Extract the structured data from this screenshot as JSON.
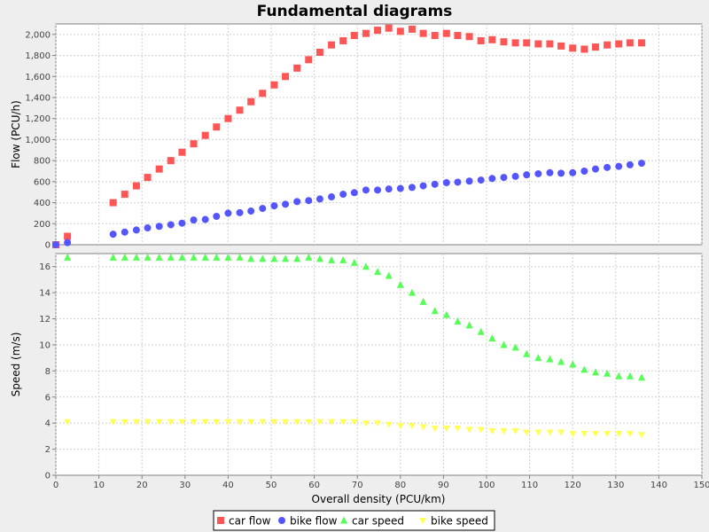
{
  "chart_data": {
    "type": "scatter",
    "title": "Fundamental diagrams",
    "xlabel": "Overall density (PCU/km)",
    "xlim": [
      0,
      150
    ],
    "xticks": [
      "0",
      "10",
      "20",
      "30",
      "40",
      "50",
      "60",
      "70",
      "80",
      "90",
      "100",
      "110",
      "120",
      "130",
      "140",
      "150"
    ],
    "grid": true,
    "legend_position": "bottom",
    "x": [
      0,
      2.7,
      13.3,
      16.0,
      18.7,
      21.3,
      24.0,
      26.7,
      29.3,
      32.0,
      34.7,
      37.3,
      40.0,
      42.7,
      45.3,
      48.0,
      50.7,
      53.3,
      56.0,
      58.7,
      61.3,
      64.0,
      66.7,
      69.3,
      72.0,
      74.7,
      77.3,
      80.0,
      82.7,
      85.3,
      88.0,
      90.7,
      93.3,
      96.0,
      98.7,
      101.3,
      104.0,
      106.7,
      109.3,
      112.0,
      114.7,
      117.3,
      120.0,
      122.7,
      125.3,
      128.0,
      130.7,
      133.3,
      136.0
    ],
    "panels": [
      {
        "ylabel": "Flow (PCU/h)",
        "ylim": [
          0,
          2100
        ],
        "yticks": [
          "0",
          "200",
          "400",
          "600",
          "800",
          "1,000",
          "1,200",
          "1,400",
          "1,600",
          "1,800",
          "2,000"
        ],
        "series": [
          {
            "name": "car flow",
            "color": "#ff5555",
            "marker": "square",
            "values": [
              0,
              80,
              400,
              480,
              560,
              640,
              720,
              800,
              880,
              960,
              1040,
              1120,
              1200,
              1280,
              1360,
              1440,
              1520,
              1600,
              1680,
              1760,
              1830,
              1900,
              1940,
              1990,
              2010,
              2040,
              2060,
              2030,
              2050,
              2010,
              1990,
              2010,
              1990,
              1980,
              1940,
              1950,
              1930,
              1920,
              1920,
              1910,
              1910,
              1890,
              1870,
              1860,
              1880,
              1900,
              1910,
              1920,
              1920
            ]
          },
          {
            "name": "bike flow",
            "color": "#5555ff",
            "marker": "circle",
            "values": [
              0,
              20,
              100,
              120,
              140,
              160,
              175,
              190,
              205,
              235,
              240,
              270,
              300,
              305,
              320,
              345,
              370,
              385,
              410,
              420,
              435,
              455,
              480,
              495,
              520,
              520,
              530,
              535,
              545,
              560,
              575,
              590,
              595,
              605,
              615,
              630,
              640,
              650,
              665,
              675,
              685,
              680,
              685,
              700,
              720,
              735,
              745,
              760,
              775
            ]
          }
        ]
      },
      {
        "ylabel": "Speed (m/s)",
        "ylim": [
          0,
          17
        ],
        "yticks": [
          "0",
          "2",
          "4",
          "6",
          "8",
          "10",
          "12",
          "14",
          "16"
        ],
        "series": [
          {
            "name": "car speed",
            "color": "#55ff55",
            "marker": "triangle",
            "values": [
              null,
              16.7,
              16.7,
              16.7,
              16.7,
              16.7,
              16.7,
              16.7,
              16.7,
              16.7,
              16.7,
              16.7,
              16.7,
              16.7,
              16.6,
              16.6,
              16.6,
              16.6,
              16.6,
              16.7,
              16.6,
              16.5,
              16.5,
              16.3,
              16.0,
              15.6,
              15.3,
              14.6,
              14.0,
              13.3,
              12.6,
              12.3,
              11.8,
              11.5,
              11.0,
              10.5,
              10.0,
              9.8,
              9.3,
              9.0,
              8.9,
              8.7,
              8.5,
              8.1,
              7.9,
              7.8,
              7.6,
              7.6,
              7.5
            ]
          },
          {
            "name": "bike speed",
            "color": "#ffff55",
            "marker": "diamond",
            "values": [
              null,
              4.1,
              4.1,
              4.1,
              4.1,
              4.1,
              4.1,
              4.1,
              4.1,
              4.1,
              4.1,
              4.1,
              4.1,
              4.1,
              4.1,
              4.1,
              4.1,
              4.1,
              4.1,
              4.1,
              4.1,
              4.1,
              4.1,
              4.1,
              4.0,
              4.0,
              3.9,
              3.8,
              3.8,
              3.7,
              3.6,
              3.6,
              3.6,
              3.5,
              3.5,
              3.4,
              3.4,
              3.4,
              3.3,
              3.3,
              3.3,
              3.3,
              3.2,
              3.2,
              3.2,
              3.2,
              3.2,
              3.2,
              3.1
            ]
          }
        ]
      }
    ],
    "legend": [
      "car flow",
      "bike flow",
      "car speed",
      "bike speed"
    ]
  }
}
